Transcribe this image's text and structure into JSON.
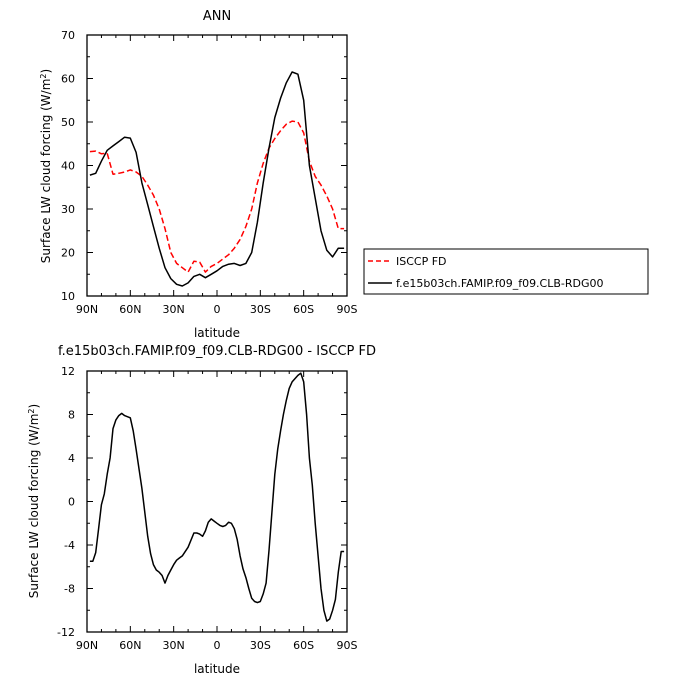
{
  "chart_data": [
    {
      "type": "line",
      "title": "ANN",
      "xlabel": "latitude",
      "ylabel": "Surface LW cloud forcing (W/m",
      "ylabel_sup": "2",
      "ylabel_end": ")",
      "xlim": [
        90,
        -90
      ],
      "ylim": [
        10,
        70
      ],
      "x_ticks": [
        {
          "value": 90,
          "label": "90N"
        },
        {
          "value": 60,
          "label": "60N"
        },
        {
          "value": 30,
          "label": "30N"
        },
        {
          "value": 0,
          "label": "0"
        },
        {
          "value": -30,
          "label": "30S"
        },
        {
          "value": -60,
          "label": "60S"
        },
        {
          "value": -90,
          "label": "90S"
        }
      ],
      "y_ticks": [
        {
          "value": 10,
          "label": "10"
        },
        {
          "value": 20,
          "label": "20"
        },
        {
          "value": 30,
          "label": "30"
        },
        {
          "value": 40,
          "label": "40"
        },
        {
          "value": 50,
          "label": "50"
        },
        {
          "value": 60,
          "label": "60"
        },
        {
          "value": 70,
          "label": "70"
        }
      ],
      "legend_position": "right",
      "series": [
        {
          "name": "ISCCP FD",
          "color": "#ff0000",
          "style": "dashed",
          "x": [
            88,
            84,
            80,
            76,
            72,
            68,
            64,
            60,
            56,
            52,
            48,
            44,
            40,
            36,
            32,
            28,
            24,
            20,
            16,
            12,
            8,
            4,
            0,
            -4,
            -8,
            -12,
            -16,
            -20,
            -24,
            -28,
            -32,
            -36,
            -40,
            -44,
            -48,
            -52,
            -56,
            -60,
            -64,
            -68,
            -72,
            -76,
            -80,
            -84,
            -88
          ],
          "y": [
            43.2,
            43.3,
            42.7,
            42.8,
            38.0,
            38.2,
            38.5,
            39.0,
            38.5,
            37.5,
            35.5,
            33.2,
            30.0,
            25.5,
            20.0,
            17.5,
            16.5,
            15.5,
            18.0,
            17.8,
            15.5,
            16.8,
            17.5,
            18.5,
            19.5,
            21.0,
            23.0,
            26.0,
            30.0,
            36.0,
            40.5,
            44.0,
            46.2,
            48.0,
            49.5,
            50.2,
            50.0,
            47.5,
            41.0,
            37.5,
            35.5,
            33.0,
            30.0,
            25.5,
            25.5
          ]
        },
        {
          "name": "f.e15b03ch.FAMIP.f09_f09.CLB-RDG00",
          "color": "#000000",
          "style": "solid",
          "x": [
            88,
            84,
            80,
            76,
            72,
            68,
            64,
            60,
            56,
            52,
            48,
            44,
            40,
            36,
            32,
            28,
            24,
            20,
            16,
            12,
            8,
            4,
            0,
            -4,
            -8,
            -12,
            -16,
            -20,
            -24,
            -28,
            -32,
            -36,
            -40,
            -44,
            -48,
            -52,
            -56,
            -60,
            -64,
            -68,
            -72,
            -76,
            -80,
            -84,
            -88
          ],
          "y": [
            37.8,
            38.2,
            41.0,
            43.5,
            44.5,
            45.5,
            46.5,
            46.3,
            43.0,
            36.0,
            31.0,
            26.0,
            21.0,
            16.5,
            14.0,
            12.7,
            12.3,
            13.0,
            14.5,
            15.0,
            14.2,
            15.0,
            15.8,
            16.8,
            17.3,
            17.5,
            17.0,
            17.5,
            20.0,
            27.0,
            36.0,
            44.0,
            51.0,
            55.5,
            59.0,
            61.5,
            61.0,
            55.0,
            40.0,
            32.5,
            25.0,
            20.5,
            19.0,
            21.0,
            21.0
          ]
        }
      ]
    },
    {
      "type": "line",
      "title": "f.e15b03ch.FAMIP.f09_f09.CLB-RDG00 - ISCCP FD",
      "xlabel": "latitude",
      "ylabel": "Surface LW cloud forcing (W/m",
      "ylabel_sup": "2",
      "ylabel_end": ")",
      "xlim": [
        90,
        -90
      ],
      "ylim": [
        -12,
        12
      ],
      "x_ticks": [
        {
          "value": 90,
          "label": "90N"
        },
        {
          "value": 60,
          "label": "60N"
        },
        {
          "value": 30,
          "label": "30N"
        },
        {
          "value": 0,
          "label": "0"
        },
        {
          "value": -30,
          "label": "30S"
        },
        {
          "value": -60,
          "label": "60S"
        },
        {
          "value": -90,
          "label": "90S"
        }
      ],
      "y_ticks": [
        {
          "value": 12,
          "label": "12"
        },
        {
          "value": 8,
          "label": "8"
        },
        {
          "value": 4,
          "label": "4"
        },
        {
          "value": 0,
          "label": "0"
        },
        {
          "value": -4,
          "label": "-4"
        },
        {
          "value": -8,
          "label": "-8"
        },
        {
          "value": -12,
          "label": "-12"
        }
      ],
      "series": [
        {
          "color": "#000000",
          "style": "solid",
          "x": [
            88,
            86,
            84,
            82,
            80,
            78,
            76,
            74,
            72,
            70,
            68,
            66,
            64,
            62,
            60,
            58,
            56,
            52,
            48,
            46,
            44,
            42,
            40,
            38,
            36,
            34,
            32,
            30,
            28,
            26,
            24,
            20,
            16,
            14,
            12,
            10,
            8,
            6,
            4,
            2,
            0,
            -2,
            -4,
            -6,
            -8,
            -10,
            -12,
            -14,
            -16,
            -18,
            -20,
            -22,
            -24,
            -26,
            -28,
            -30,
            -32,
            -34,
            -36,
            -38,
            -40,
            -42,
            -44,
            -46,
            -48,
            -50,
            -52,
            -54,
            -56,
            -58,
            -60,
            -62,
            -64,
            -66,
            -68,
            -70,
            -72,
            -74,
            -76,
            -78,
            -80,
            -82,
            -84,
            -86,
            -88
          ],
          "y": [
            -5.5,
            -5.5,
            -4.7,
            -2.5,
            -0.3,
            0.7,
            2.5,
            4.0,
            6.7,
            7.5,
            7.9,
            8.1,
            7.9,
            7.8,
            7.7,
            6.5,
            4.8,
            1.2,
            -3.2,
            -4.8,
            -5.8,
            -6.3,
            -6.5,
            -6.8,
            -7.5,
            -6.8,
            -6.3,
            -5.8,
            -5.4,
            -5.2,
            -5.0,
            -4.2,
            -2.9,
            -2.9,
            -3.0,
            -3.2,
            -2.7,
            -1.9,
            -1.6,
            -1.8,
            -2.0,
            -2.2,
            -2.3,
            -2.2,
            -1.9,
            -2.0,
            -2.5,
            -3.5,
            -5.0,
            -6.2,
            -7.0,
            -8.0,
            -8.9,
            -9.2,
            -9.3,
            -9.2,
            -8.5,
            -7.5,
            -4.5,
            -1.0,
            2.5,
            4.8,
            6.5,
            8.0,
            9.3,
            10.4,
            11.0,
            11.3,
            11.6,
            11.8,
            11.0,
            8.0,
            4.0,
            1.5,
            -2.0,
            -5.0,
            -8.0,
            -10.0,
            -11.0,
            -10.8,
            -10.0,
            -9.0,
            -6.5,
            -4.6,
            -4.6
          ]
        }
      ]
    }
  ]
}
